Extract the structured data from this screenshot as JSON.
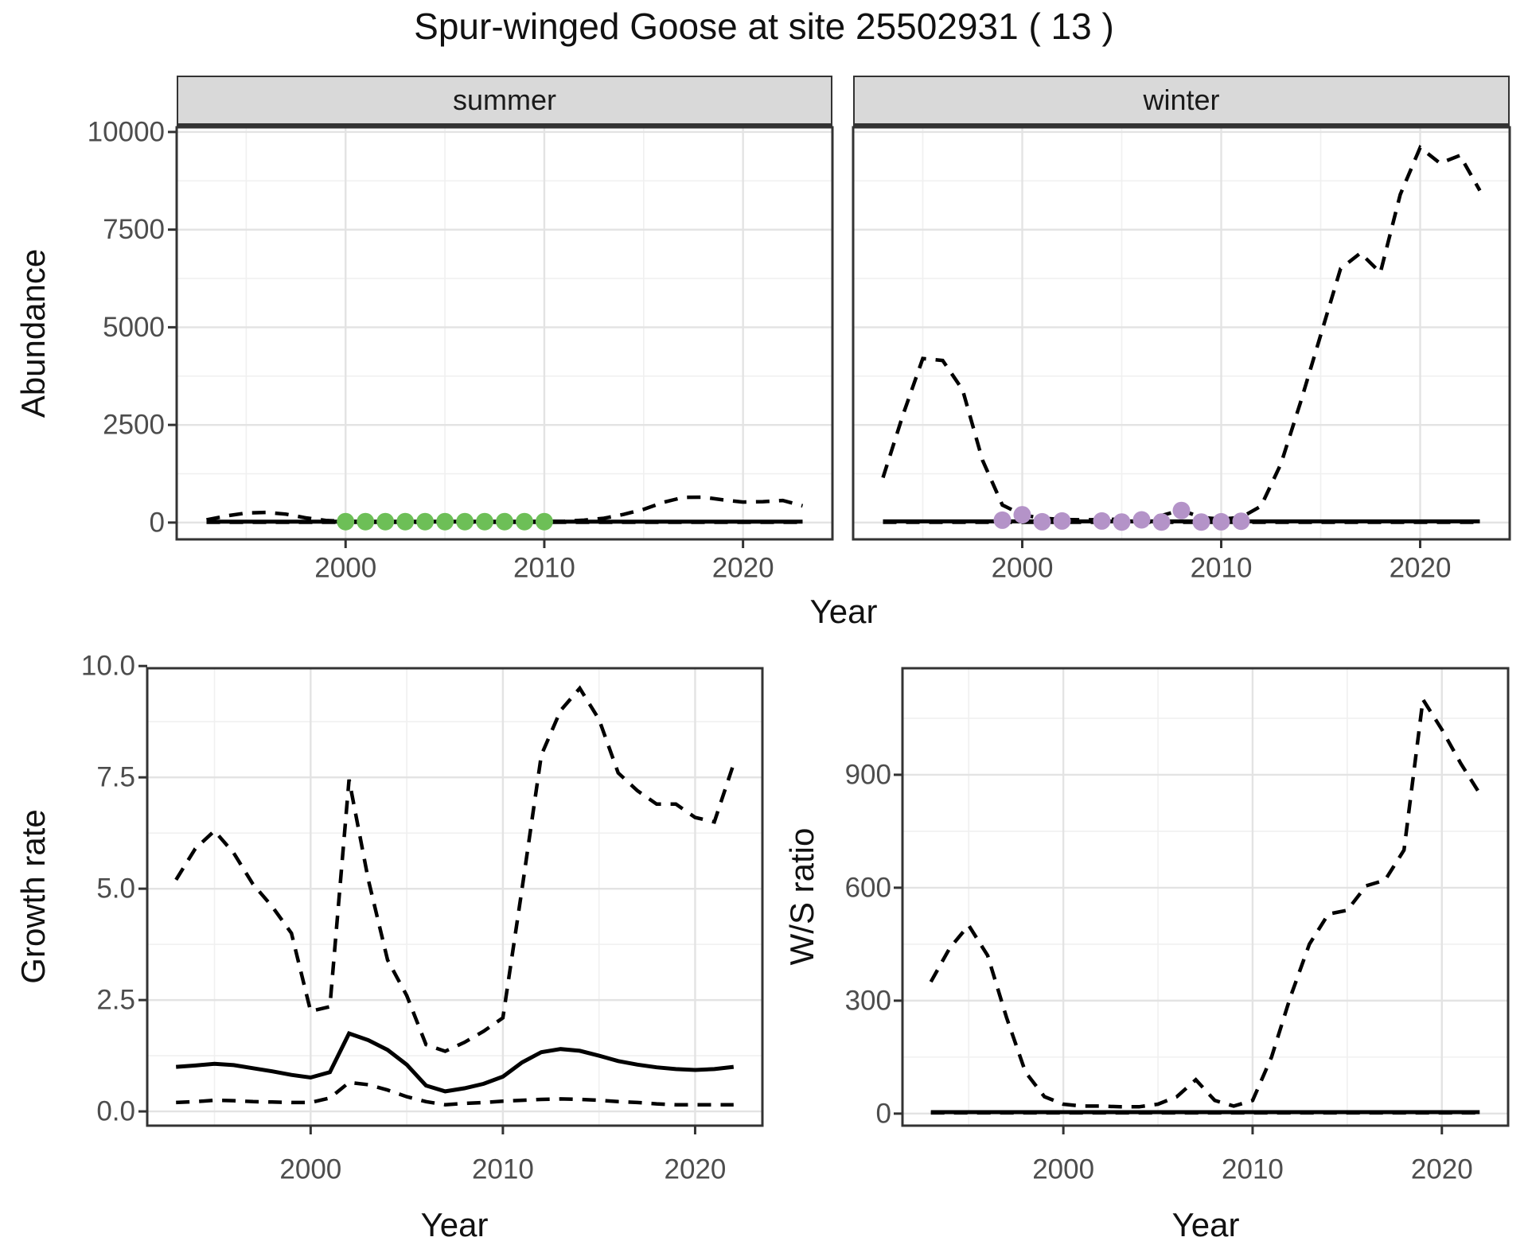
{
  "title": "Spur-winged Goose at site 25502931 ( 13 )",
  "facets": {
    "summer": "summer",
    "winter": "winter"
  },
  "axis_titles": {
    "top_x": "Year",
    "top_y": "Abundance",
    "growth_x": "Year",
    "growth_y": "Growth rate",
    "ws_x": "Year",
    "ws_y": "W/S ratio"
  },
  "colors": {
    "line": "#000000",
    "point_green": "#6dbf57",
    "point_purple": "#b493c8",
    "strip_bg": "#d9d9d9",
    "panel_border": "#333333",
    "grid_major": "#e3e3e3",
    "grid_minor": "#f0f0f0",
    "axis_text": "#4d4d4d"
  },
  "chart_data": [
    {
      "id": "abundance_summer",
      "type": "line",
      "title": "summer facet of Abundance vs Year",
      "facet_label": "summer",
      "xlabel": "Year",
      "ylabel": "Abundance",
      "xlim": [
        1991.5,
        2024.5
      ],
      "ylim": [
        -430,
        10120
      ],
      "xticks": [
        2000,
        2010,
        2020
      ],
      "xtick_labels": [
        "2000",
        "2010",
        "2020"
      ],
      "x_minor": [
        1995,
        2005,
        2015
      ],
      "yticks": [
        0,
        2500,
        5000,
        7500,
        10000
      ],
      "ytick_labels": [
        "0",
        "2500",
        "5000",
        "7500",
        "10000"
      ],
      "y_minor": [
        1250,
        3750,
        6250,
        8750
      ],
      "series": [
        {
          "name": "fit",
          "style": "solid",
          "x": [
            1993,
            1994,
            1995,
            1996,
            1997,
            1998,
            1999,
            2000,
            2001,
            2002,
            2003,
            2004,
            2005,
            2006,
            2007,
            2008,
            2009,
            2010,
            2011,
            2012,
            2013,
            2014,
            2015,
            2016,
            2017,
            2018,
            2019,
            2020,
            2021,
            2022,
            2023
          ],
          "y": [
            25,
            25,
            25,
            25,
            25,
            25,
            25,
            25,
            25,
            25,
            25,
            25,
            25,
            25,
            25,
            25,
            25,
            25,
            25,
            25,
            25,
            25,
            25,
            25,
            25,
            25,
            25,
            25,
            25,
            25,
            25
          ]
        },
        {
          "name": "upper_ci",
          "style": "dashed",
          "x": [
            1993,
            1994,
            1995,
            1996,
            1997,
            1998,
            1999,
            2000,
            2001,
            2002,
            2003,
            2004,
            2005,
            2006,
            2007,
            2008,
            2009,
            2010,
            2011,
            2012,
            2013,
            2014,
            2015,
            2016,
            2017,
            2018,
            2019,
            2020,
            2021,
            2022,
            2023
          ],
          "y": [
            70,
            170,
            245,
            260,
            215,
            120,
            55,
            30,
            25,
            22,
            22,
            22,
            22,
            22,
            22,
            22,
            25,
            28,
            35,
            60,
            110,
            210,
            340,
            520,
            645,
            650,
            580,
            525,
            535,
            565,
            430
          ]
        },
        {
          "name": "lower_ci",
          "style": "dashed",
          "x": [
            1993,
            1994,
            1995,
            1996,
            1997,
            1998,
            1999,
            2000,
            2001,
            2002,
            2003,
            2004,
            2005,
            2006,
            2007,
            2008,
            2009,
            2010,
            2011,
            2012,
            2013,
            2014,
            2015,
            2016,
            2017,
            2018,
            2019,
            2020,
            2021,
            2022,
            2023
          ],
          "y": [
            8,
            8,
            8,
            8,
            8,
            8,
            8,
            8,
            8,
            8,
            8,
            8,
            8,
            8,
            8,
            8,
            8,
            8,
            8,
            8,
            8,
            8,
            8,
            8,
            8,
            8,
            8,
            8,
            8,
            8,
            8
          ]
        }
      ],
      "points": {
        "name": "observed_counts",
        "color_key": "point_green",
        "x": [
          2000,
          2001,
          2002,
          2003,
          2004,
          2005,
          2006,
          2007,
          2008,
          2009,
          2010
        ],
        "y": [
          25,
          25,
          25,
          25,
          25,
          25,
          25,
          25,
          25,
          25,
          25
        ]
      }
    },
    {
      "id": "abundance_winter",
      "type": "line",
      "title": "winter facet of Abundance vs Year",
      "facet_label": "winter",
      "xlabel": "Year",
      "ylabel": "Abundance",
      "xlim": [
        1991.5,
        2024.5
      ],
      "ylim": [
        -430,
        10120
      ],
      "xticks": [
        2000,
        2010,
        2020
      ],
      "xtick_labels": [
        "2000",
        "2010",
        "2020"
      ],
      "x_minor": [
        1995,
        2005,
        2015
      ],
      "yticks": [
        0,
        2500,
        5000,
        7500,
        10000
      ],
      "ytick_labels": [
        "0",
        "2500",
        "5000",
        "7500",
        "10000"
      ],
      "y_minor": [
        1250,
        3750,
        6250,
        8750
      ],
      "series": [
        {
          "name": "fit",
          "style": "solid",
          "x": [
            1993,
            1994,
            1995,
            1996,
            1997,
            1998,
            1999,
            2000,
            2001,
            2002,
            2003,
            2004,
            2005,
            2006,
            2007,
            2008,
            2009,
            2010,
            2011,
            2012,
            2013,
            2014,
            2015,
            2016,
            2017,
            2018,
            2019,
            2020,
            2021,
            2022,
            2023
          ],
          "y": [
            30,
            30,
            30,
            30,
            30,
            30,
            30,
            30,
            30,
            30,
            30,
            30,
            30,
            30,
            30,
            30,
            30,
            30,
            30,
            30,
            30,
            30,
            30,
            30,
            30,
            30,
            30,
            30,
            30,
            30,
            30
          ]
        },
        {
          "name": "upper_ci",
          "style": "dashed",
          "x": [
            1993,
            1994,
            1995,
            1996,
            1997,
            1998,
            1999,
            2000,
            2001,
            2002,
            2003,
            2004,
            2005,
            2006,
            2007,
            2008,
            2009,
            2010,
            2011,
            2012,
            2013,
            2014,
            2015,
            2016,
            2017,
            2018,
            2019,
            2020,
            2021,
            2022,
            2023
          ],
          "y": [
            1150,
            2750,
            4200,
            4150,
            3400,
            1600,
            450,
            200,
            110,
            80,
            70,
            75,
            90,
            130,
            180,
            320,
            130,
            90,
            130,
            420,
            1500,
            3100,
            4800,
            6500,
            6900,
            6400,
            8400,
            9600,
            9200,
            9400,
            8500
          ]
        },
        {
          "name": "lower_ci",
          "style": "dashed",
          "x": [
            1993,
            1994,
            1995,
            1996,
            1997,
            1998,
            1999,
            2000,
            2001,
            2002,
            2003,
            2004,
            2005,
            2006,
            2007,
            2008,
            2009,
            2010,
            2011,
            2012,
            2013,
            2014,
            2015,
            2016,
            2017,
            2018,
            2019,
            2020,
            2021,
            2022,
            2023
          ],
          "y": [
            8,
            8,
            8,
            8,
            8,
            8,
            8,
            8,
            8,
            8,
            8,
            8,
            8,
            8,
            8,
            8,
            8,
            8,
            8,
            8,
            8,
            8,
            8,
            8,
            8,
            8,
            8,
            8,
            8,
            8,
            8
          ]
        }
      ],
      "points": {
        "name": "observed_counts",
        "color_key": "point_purple",
        "x": [
          1999,
          2000,
          2001,
          2002,
          2004,
          2005,
          2006,
          2007,
          2008,
          2009,
          2010,
          2011
        ],
        "y": [
          60,
          200,
          20,
          40,
          40,
          15,
          70,
          15,
          310,
          15,
          20,
          35
        ]
      }
    },
    {
      "id": "growth_rate",
      "type": "line",
      "title": "Growth rate vs Year",
      "facet_label": "",
      "xlabel": "Year",
      "ylabel": "Growth rate",
      "xlim": [
        1991.5,
        2023.5
      ],
      "ylim": [
        -0.32,
        9.95
      ],
      "xticks": [
        2000,
        2010,
        2020
      ],
      "xtick_labels": [
        "2000",
        "2010",
        "2020"
      ],
      "x_minor": [
        1995,
        2005,
        2015
      ],
      "yticks": [
        0,
        2.5,
        5,
        7.5,
        10
      ],
      "ytick_labels": [
        "0.0",
        "2.5",
        "5.0",
        "7.5",
        "10.0"
      ],
      "y_minor": [
        1.25,
        3.75,
        6.25,
        8.75
      ],
      "series": [
        {
          "name": "fit",
          "style": "solid",
          "x": [
            1993,
            1994,
            1995,
            1996,
            1997,
            1998,
            1999,
            2000,
            2001,
            2002,
            2003,
            2004,
            2005,
            2006,
            2007,
            2008,
            2009,
            2010,
            2011,
            2012,
            2013,
            2014,
            2015,
            2016,
            2017,
            2018,
            2019,
            2020,
            2021,
            2022
          ],
          "y": [
            1.0,
            1.03,
            1.07,
            1.04,
            0.97,
            0.9,
            0.82,
            0.76,
            0.88,
            1.75,
            1.6,
            1.38,
            1.05,
            0.58,
            0.45,
            0.52,
            0.62,
            0.78,
            1.1,
            1.33,
            1.4,
            1.36,
            1.25,
            1.13,
            1.05,
            0.99,
            0.95,
            0.93,
            0.95,
            1.0
          ]
        },
        {
          "name": "upper_ci",
          "style": "dashed",
          "x": [
            1993,
            1994,
            1995,
            1996,
            1997,
            1998,
            1999,
            2000,
            2001,
            2002,
            2003,
            2004,
            2005,
            2006,
            2007,
            2008,
            2009,
            2010,
            2011,
            2012,
            2013,
            2014,
            2015,
            2016,
            2017,
            2018,
            2019,
            2020,
            2021,
            2022
          ],
          "y": [
            5.2,
            5.9,
            6.3,
            5.8,
            5.1,
            4.6,
            4.0,
            2.25,
            2.35,
            7.45,
            5.2,
            3.4,
            2.6,
            1.5,
            1.35,
            1.55,
            1.8,
            2.1,
            5.0,
            8.0,
            9.0,
            9.5,
            8.8,
            7.6,
            7.2,
            6.9,
            6.9,
            6.6,
            6.5,
            7.8
          ]
        },
        {
          "name": "lower_ci",
          "style": "dashed",
          "x": [
            1993,
            1994,
            1995,
            1996,
            1997,
            1998,
            1999,
            2000,
            2001,
            2002,
            2003,
            2004,
            2005,
            2006,
            2007,
            2008,
            2009,
            2010,
            2011,
            2012,
            2013,
            2014,
            2015,
            2016,
            2017,
            2018,
            2019,
            2020,
            2021,
            2022
          ],
          "y": [
            0.2,
            0.22,
            0.25,
            0.24,
            0.22,
            0.21,
            0.2,
            0.2,
            0.3,
            0.65,
            0.6,
            0.48,
            0.33,
            0.22,
            0.15,
            0.18,
            0.2,
            0.23,
            0.25,
            0.27,
            0.28,
            0.27,
            0.25,
            0.22,
            0.2,
            0.17,
            0.15,
            0.15,
            0.15,
            0.15
          ]
        }
      ],
      "points": null
    },
    {
      "id": "ws_ratio",
      "type": "line",
      "title": "W/S ratio vs Year",
      "facet_label": "",
      "xlabel": "Year",
      "ylabel": "W/S ratio",
      "xlim": [
        1991.5,
        2023.5
      ],
      "ylim": [
        -32,
        1183
      ],
      "xticks": [
        2000,
        2010,
        2020
      ],
      "xtick_labels": [
        "2000",
        "2010",
        "2020"
      ],
      "x_minor": [
        1995,
        2005,
        2015
      ],
      "yticks": [
        0,
        300,
        600,
        900
      ],
      "ytick_labels": [
        "0",
        "300",
        "600",
        "900"
      ],
      "y_minor": [
        150,
        450,
        750,
        1050
      ],
      "series": [
        {
          "name": "fit",
          "style": "solid",
          "x": [
            1993,
            1994,
            1995,
            1996,
            1997,
            1998,
            1999,
            2000,
            2001,
            2002,
            2003,
            2004,
            2005,
            2006,
            2007,
            2008,
            2009,
            2010,
            2011,
            2012,
            2013,
            2014,
            2015,
            2016,
            2017,
            2018,
            2019,
            2020,
            2021,
            2022
          ],
          "y": [
            4,
            4,
            4,
            4,
            4,
            4,
            4,
            4,
            4,
            4,
            4,
            4,
            4,
            4,
            4,
            4,
            4,
            4,
            4,
            4,
            4,
            4,
            4,
            4,
            4,
            4,
            4,
            4,
            4,
            4
          ]
        },
        {
          "name": "upper_ci",
          "style": "dashed",
          "x": [
            1993,
            1994,
            1995,
            1996,
            1997,
            1998,
            1999,
            2000,
            2001,
            2002,
            2003,
            2004,
            2005,
            2006,
            2007,
            2008,
            2009,
            2010,
            2011,
            2012,
            2013,
            2014,
            2015,
            2016,
            2017,
            2018,
            2019,
            2020,
            2021,
            2022
          ],
          "y": [
            350,
            440,
            500,
            420,
            255,
            110,
            45,
            25,
            20,
            20,
            18,
            18,
            25,
            45,
            90,
            35,
            20,
            35,
            150,
            310,
            450,
            530,
            540,
            605,
            620,
            700,
            1100,
            1020,
            930,
            850
          ]
        },
        {
          "name": "lower_ci",
          "style": "dashed",
          "x": [
            1993,
            1994,
            1995,
            1996,
            1997,
            1998,
            1999,
            2000,
            2001,
            2002,
            2003,
            2004,
            2005,
            2006,
            2007,
            2008,
            2009,
            2010,
            2011,
            2012,
            2013,
            2014,
            2015,
            2016,
            2017,
            2018,
            2019,
            2020,
            2021,
            2022
          ],
          "y": [
            2,
            2,
            2,
            2,
            2,
            2,
            2,
            2,
            2,
            2,
            2,
            2,
            2,
            2,
            2,
            2,
            2,
            2,
            2,
            2,
            2,
            2,
            2,
            2,
            2,
            2,
            2,
            2,
            2,
            2
          ]
        }
      ],
      "points": null
    }
  ]
}
